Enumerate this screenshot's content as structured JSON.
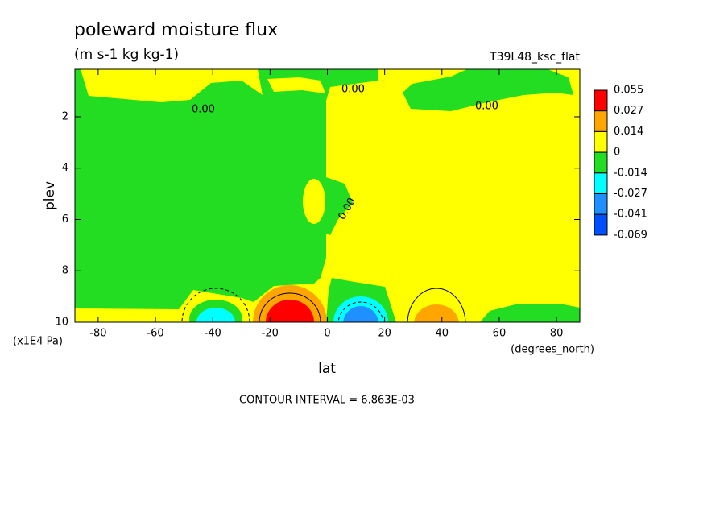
{
  "chart_data": {
    "type": "contour",
    "title": "poleward moisture flux",
    "subtitle": "(m s-1 kg kg-1)",
    "run_label": "T39L48_ksc_flat",
    "x_label": "lat",
    "x_units": "(degrees_north)",
    "y_label": "plev",
    "y_units": "(x1E4 Pa)",
    "footer": "CONTOUR INTERVAL = 6.863E-03",
    "xlim": [
      -88.125,
      88.125
    ],
    "xticks": [
      -80,
      -60,
      -40,
      -20,
      0,
      20,
      40,
      60,
      80
    ],
    "ylim": [
      10,
      0.15
    ],
    "yticks": [
      2,
      4,
      6,
      8,
      10
    ],
    "levels": [
      0.055,
      0.027,
      0.014,
      0,
      -0.014,
      -0.027,
      -0.041,
      -0.069
    ],
    "colors": [
      "#ff0000",
      "#ffa500",
      "#ffff00",
      "#22dd22",
      "#00ffff",
      "#1e90ff",
      "#0050ff"
    ],
    "contour_labels": [
      "0.00",
      "0.00",
      "0.00",
      "0.00"
    ]
  }
}
